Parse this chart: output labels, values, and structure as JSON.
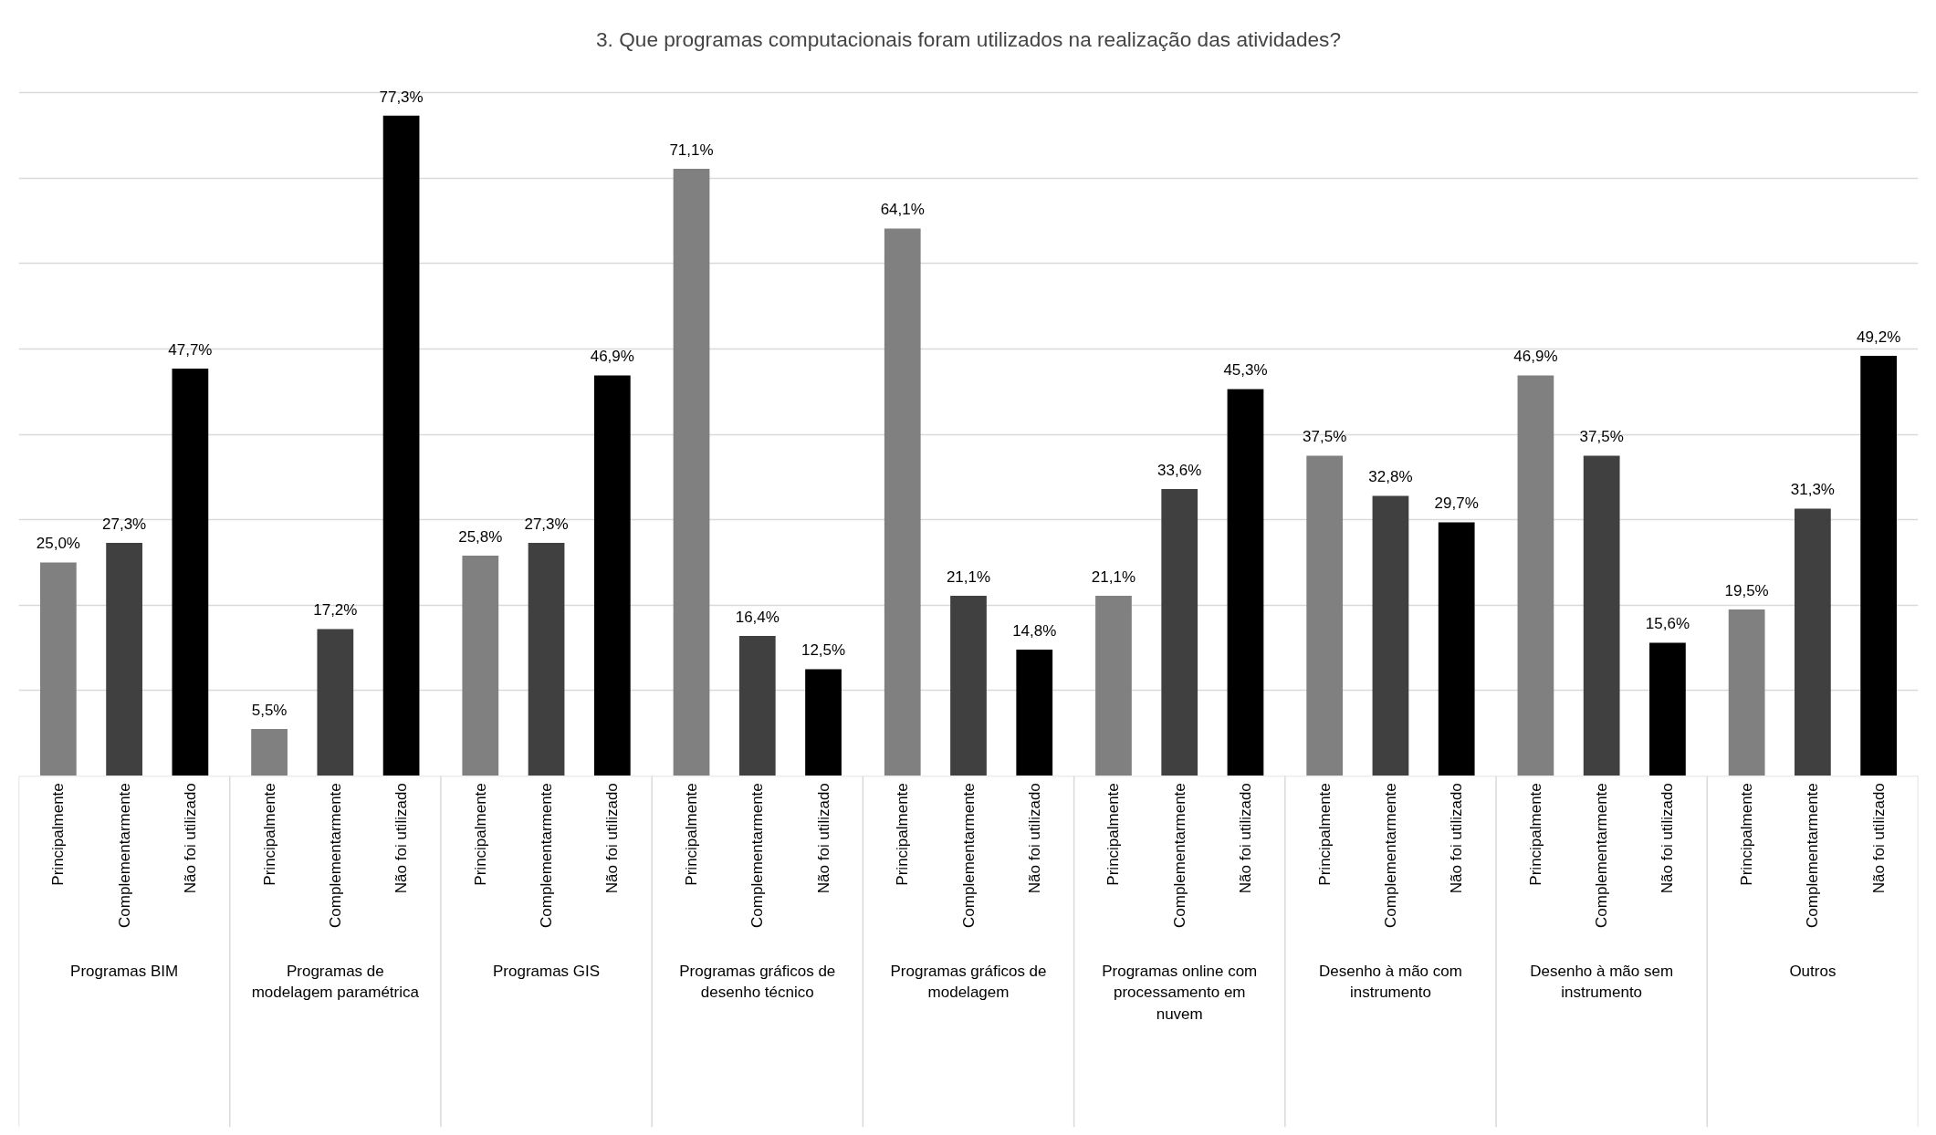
{
  "chart_data": {
    "type": "bar",
    "title": "3. Que programas computacionais foram utilizados na realização das atividades?",
    "categories": [
      "Programas BIM",
      "Programas de modelagem paramétrica",
      "Programas GIS",
      "Programas gráficos de desenho técnico",
      "Programas gráficos de modelagem",
      "Programas online com processamento em nuvem",
      "Desenho à mão com instrumento",
      "Desenho à mão sem instrumento",
      "Outros"
    ],
    "series": [
      {
        "name": "Principalmente",
        "color": "#808080",
        "values": [
          25.0,
          5.5,
          25.8,
          71.1,
          64.1,
          21.1,
          37.5,
          46.9,
          19.5
        ],
        "value_labels": [
          "25,0%",
          "5,5%",
          "25,8%",
          "71,1%",
          "64,1%",
          "21,1%",
          "37,5%",
          "46,9%",
          "19,5%"
        ]
      },
      {
        "name": "Complementarmente",
        "color": "#404040",
        "values": [
          27.3,
          17.2,
          27.3,
          16.4,
          21.1,
          33.6,
          32.8,
          37.5,
          31.3
        ],
        "value_labels": [
          "27,3%",
          "17,2%",
          "27,3%",
          "16,4%",
          "21,1%",
          "33,6%",
          "32,8%",
          "37,5%",
          "31,3%"
        ]
      },
      {
        "name": "Não foi utilizado",
        "color": "#000000",
        "values": [
          47.7,
          77.3,
          46.9,
          12.5,
          14.8,
          45.3,
          29.7,
          15.6,
          49.2
        ],
        "value_labels": [
          "47,7%",
          "77,3%",
          "46,9%",
          "12,5%",
          "14,8%",
          "45,3%",
          "29,7%",
          "15,6%",
          "49,2%"
        ]
      }
    ],
    "grid": "y",
    "tick_labels": "x"
  }
}
